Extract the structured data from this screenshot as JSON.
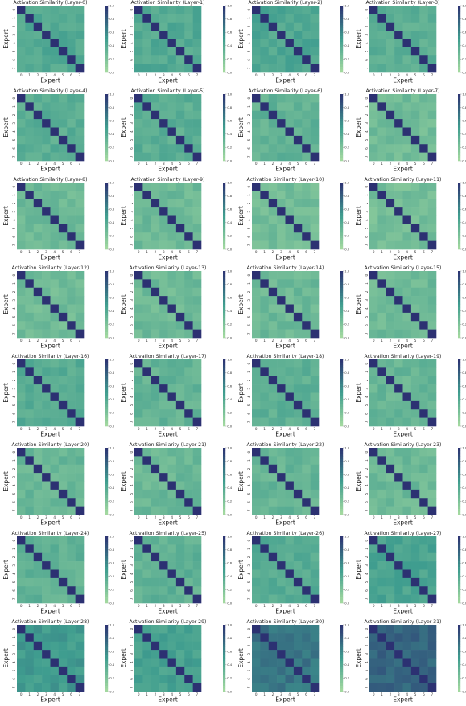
{
  "figure": {
    "title_template": "Activation Similarity (Layer-{n})",
    "xlabel": "Expert",
    "ylabel": "Expert",
    "colorbar_ticks": [
      "0.0",
      "0.2",
      "0.4",
      "0.6",
      "0.8",
      "1.0"
    ]
  },
  "chart_data": {
    "type": "heatmap",
    "colormap": "crest",
    "color_low": "#a6dba0",
    "color_mid": "#3f9d8f",
    "color_high": "#2c3172",
    "vmin": 0.0,
    "vmax": 1.0,
    "x_ticks": [
      "0",
      "1",
      "2",
      "3",
      "4",
      "5",
      "6",
      "7"
    ],
    "y_ticks": [
      "0",
      "1",
      "2",
      "3",
      "4",
      "5",
      "6",
      "7"
    ],
    "diagonal_value": 1.0,
    "panels": [
      {
        "title": "Activation Similarity (Layer-0)",
        "offdiag_mean": 0.4
      },
      {
        "title": "Activation Similarity (Layer-1)",
        "offdiag_mean": 0.4
      },
      {
        "title": "Activation Similarity (Layer-2)",
        "offdiag_mean": 0.42
      },
      {
        "title": "Activation Similarity (Layer-3)",
        "offdiag_mean": 0.35
      },
      {
        "title": "Activation Similarity (Layer-4)",
        "offdiag_mean": 0.37
      },
      {
        "title": "Activation Similarity (Layer-5)",
        "offdiag_mean": 0.36
      },
      {
        "title": "Activation Similarity (Layer-6)",
        "offdiag_mean": 0.33
      },
      {
        "title": "Activation Similarity (Layer-7)",
        "offdiag_mean": 0.26
      },
      {
        "title": "Activation Similarity (Layer-8)",
        "offdiag_mean": 0.27
      },
      {
        "title": "Activation Similarity (Layer-9)",
        "offdiag_mean": 0.28
      },
      {
        "title": "Activation Similarity (Layer-10)",
        "offdiag_mean": 0.25
      },
      {
        "title": "Activation Similarity (Layer-11)",
        "offdiag_mean": 0.24
      },
      {
        "title": "Activation Similarity (Layer-12)",
        "offdiag_mean": 0.26
      },
      {
        "title": "Activation Similarity (Layer-13)",
        "offdiag_mean": 0.27
      },
      {
        "title": "Activation Similarity (Layer-14)",
        "offdiag_mean": 0.28
      },
      {
        "title": "Activation Similarity (Layer-15)",
        "offdiag_mean": 0.27
      },
      {
        "title": "Activation Similarity (Layer-16)",
        "offdiag_mean": 0.37
      },
      {
        "title": "Activation Similarity (Layer-17)",
        "offdiag_mean": 0.32
      },
      {
        "title": "Activation Similarity (Layer-18)",
        "offdiag_mean": 0.35
      },
      {
        "title": "Activation Similarity (Layer-19)",
        "offdiag_mean": 0.3
      },
      {
        "title": "Activation Similarity (Layer-20)",
        "offdiag_mean": 0.3
      },
      {
        "title": "Activation Similarity (Layer-21)",
        "offdiag_mean": 0.29
      },
      {
        "title": "Activation Similarity (Layer-22)",
        "offdiag_mean": 0.31
      },
      {
        "title": "Activation Similarity (Layer-23)",
        "offdiag_mean": 0.28
      },
      {
        "title": "Activation Similarity (Layer-24)",
        "offdiag_mean": 0.33
      },
      {
        "title": "Activation Similarity (Layer-25)",
        "offdiag_mean": 0.34
      },
      {
        "title": "Activation Similarity (Layer-26)",
        "offdiag_mean": 0.38
      },
      {
        "title": "Activation Similarity (Layer-27)",
        "offdiag_mean": 0.44
      },
      {
        "title": "Activation Similarity (Layer-28)",
        "offdiag_mean": 0.5
      },
      {
        "title": "Activation Similarity (Layer-29)",
        "offdiag_mean": 0.46
      },
      {
        "title": "Activation Similarity (Layer-30)",
        "offdiag_mean": 0.68
      },
      {
        "title": "Activation Similarity (Layer-31)",
        "offdiag_mean": 0.76
      }
    ]
  }
}
